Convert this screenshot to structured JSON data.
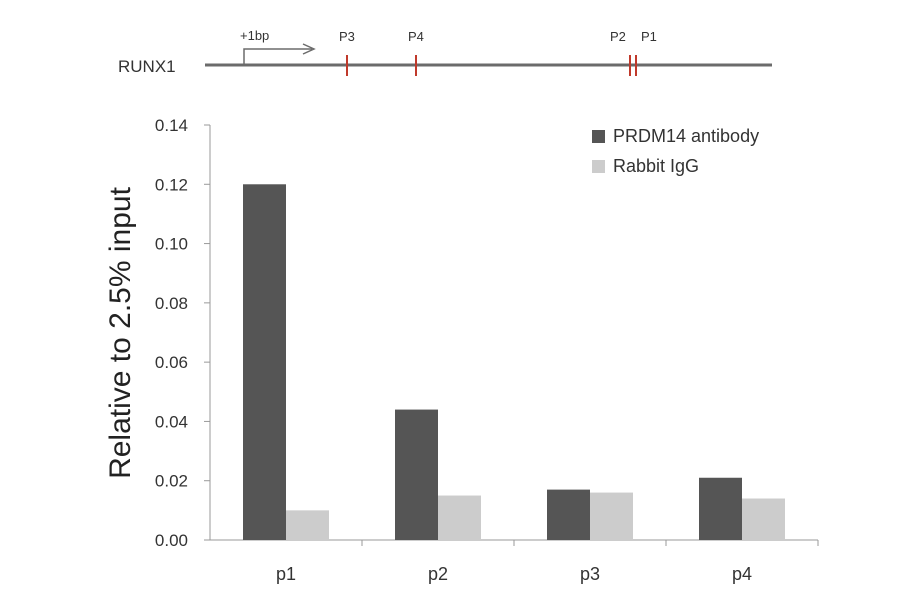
{
  "gene_map": {
    "gene_label": "RUNX1",
    "tss_label": "+1bp",
    "site_labels": [
      "P3",
      "P4",
      "P2",
      "P1"
    ],
    "colors": {
      "line": "#6b6b6b",
      "site_mark": "#c0392b"
    }
  },
  "chart_data": {
    "type": "bar",
    "categories": [
      "p1",
      "p2",
      "p3",
      "p4"
    ],
    "series": [
      {
        "name": "PRDM14 antibody",
        "values": [
          0.12,
          0.044,
          0.017,
          0.021
        ],
        "color": "#555555"
      },
      {
        "name": "Rabbit IgG",
        "values": [
          0.01,
          0.015,
          0.016,
          0.014
        ],
        "color": "#cccccc"
      }
    ],
    "title": "",
    "xlabel": "",
    "ylabel": "Relative to 2.5% input",
    "ylim": [
      0,
      0.14
    ],
    "yticks": [
      "0.00",
      "0.02",
      "0.04",
      "0.06",
      "0.08",
      "0.10",
      "0.12",
      "0.14"
    ],
    "grid": false,
    "legend_position": "top-right"
  }
}
